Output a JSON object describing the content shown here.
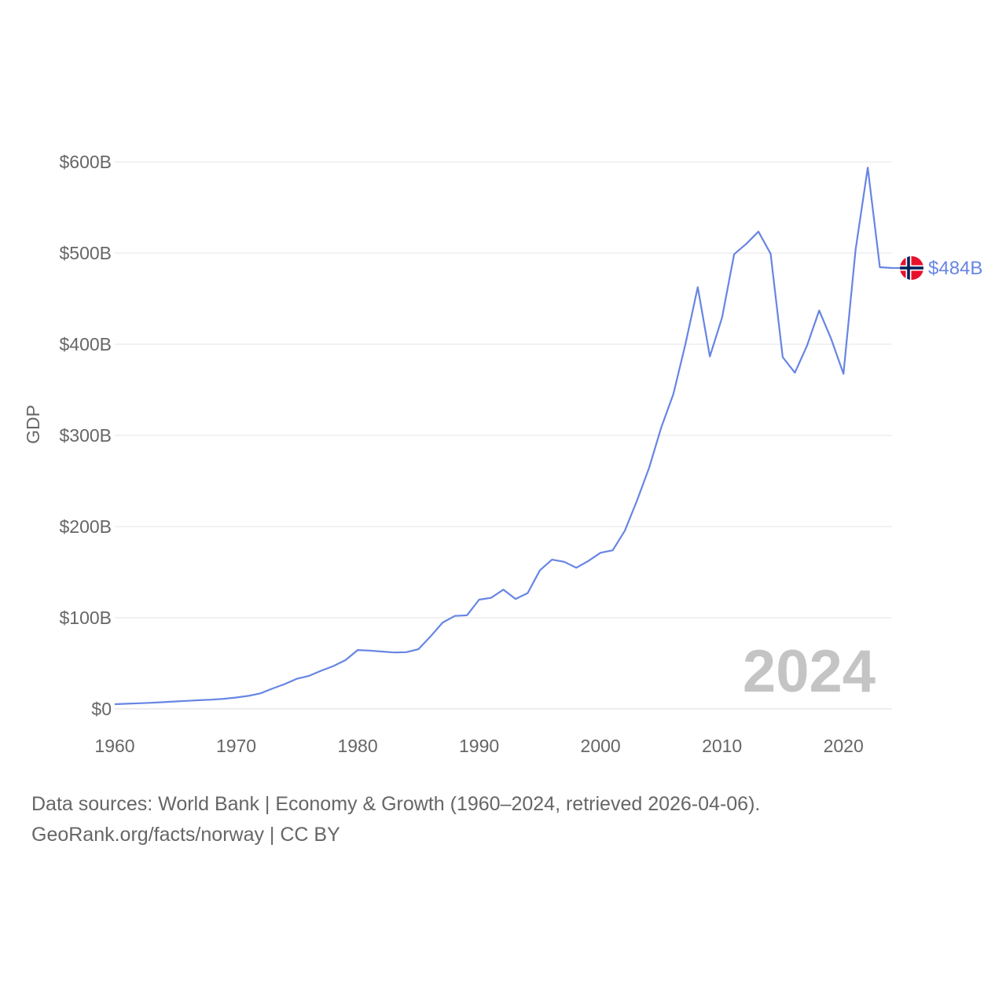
{
  "chart_data": {
    "type": "line",
    "ylabel": "GDP",
    "xlabel": "",
    "ylim": [
      0,
      600
    ],
    "xlim": [
      1960,
      2024
    ],
    "y_ticks": [
      {
        "value": 0,
        "label": "$0"
      },
      {
        "value": 100,
        "label": "$100B"
      },
      {
        "value": 200,
        "label": "$200B"
      },
      {
        "value": 300,
        "label": "$300B"
      },
      {
        "value": 400,
        "label": "$400B"
      },
      {
        "value": 500,
        "label": "$500B"
      },
      {
        "value": 600,
        "label": "$600B"
      }
    ],
    "x_ticks": [
      {
        "value": 1960,
        "label": "1960"
      },
      {
        "value": 1970,
        "label": "1970"
      },
      {
        "value": 1980,
        "label": "1980"
      },
      {
        "value": 1990,
        "label": "1990"
      },
      {
        "value": 2000,
        "label": "2000"
      },
      {
        "value": 2010,
        "label": "2010"
      },
      {
        "value": 2020,
        "label": "2020"
      }
    ],
    "grid": true,
    "units": "billion USD",
    "series": [
      {
        "name": "Norway",
        "color": "#6785e3",
        "end_label": "$484B",
        "x": [
          1960,
          1961,
          1962,
          1963,
          1964,
          1965,
          1966,
          1967,
          1968,
          1969,
          1970,
          1971,
          1972,
          1973,
          1974,
          1975,
          1976,
          1977,
          1978,
          1979,
          1980,
          1981,
          1982,
          1983,
          1984,
          1985,
          1986,
          1987,
          1988,
          1989,
          1990,
          1991,
          1992,
          1993,
          1994,
          1995,
          1996,
          1997,
          1998,
          1999,
          2000,
          2001,
          2002,
          2003,
          2004,
          2005,
          2006,
          2007,
          2008,
          2009,
          2010,
          2011,
          2012,
          2013,
          2014,
          2015,
          2016,
          2017,
          2018,
          2019,
          2020,
          2021,
          2022,
          2023,
          2024
        ],
        "values": [
          5.2,
          5.7,
          6.2,
          6.7,
          7.4,
          8.2,
          8.9,
          9.6,
          10.2,
          11.1,
          12.5,
          14.3,
          17.1,
          22.4,
          27.2,
          33.1,
          36.3,
          41.9,
          47.0,
          53.5,
          64.6,
          64.0,
          62.9,
          61.9,
          62.2,
          65.4,
          79.5,
          94.7,
          102.0,
          102.7,
          119.8,
          121.9,
          130.9,
          120.6,
          127.1,
          152.0,
          163.7,
          161.4,
          154.8,
          162.3,
          171.3,
          174.0,
          195.4,
          228.5,
          264.4,
          308.9,
          345.4,
          400.9,
          462.6,
          386.6,
          429.1,
          498.8,
          510.2,
          523.5,
          499.3,
          385.8,
          368.8,
          398.4,
          437.0,
          405.5,
          367.6,
          503.5,
          593.7,
          484.5,
          483.6
        ]
      }
    ],
    "watermark_year": "2024"
  },
  "flag_icon": "norway-flag-icon",
  "footer": {
    "line1": "Data sources: World Bank | Economy & Growth (1960–2024, retrieved 2026-04-06).",
    "line2": "GeoRank.org/facts/norway | CC BY"
  }
}
